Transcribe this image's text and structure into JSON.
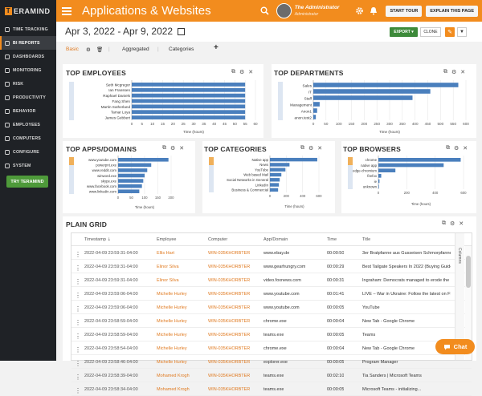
{
  "brand": {
    "logo_text": "ERAMIND",
    "logo_mark": "T"
  },
  "sidebar": {
    "items": [
      {
        "label": "TIME TRACKING",
        "icon": "clock-icon"
      },
      {
        "label": "BI REPORTS",
        "icon": "chart-icon",
        "active": true
      },
      {
        "label": "DASHBOARDS",
        "icon": "dashboard-icon"
      },
      {
        "label": "MONITORING",
        "icon": "monitor-icon"
      },
      {
        "label": "RISK",
        "icon": "warning-icon"
      },
      {
        "label": "PRODUCTIVITY",
        "icon": "productivity-icon"
      },
      {
        "label": "BEHAVIOR",
        "icon": "behavior-icon"
      },
      {
        "label": "EMPLOYEES",
        "icon": "users-icon"
      },
      {
        "label": "COMPUTERS",
        "icon": "computer-icon"
      },
      {
        "label": "CONFIGURE",
        "icon": "gear-icon"
      },
      {
        "label": "SYSTEM",
        "icon": "system-icon"
      }
    ],
    "try_label": "TRY TERAMIND"
  },
  "topbar": {
    "title": "Applications & Websites",
    "user_name": "The Administrator",
    "user_role": "Administrator",
    "start_tour": "START TOUR",
    "explain": "EXPLAIN THIS PAGE",
    "accent": "#f28c1e"
  },
  "header": {
    "date_range": "Apr 3, 2022 - Apr 9, 2022",
    "export": "EXPORT ▾",
    "clone": "CLONE"
  },
  "tabs": {
    "basic": "Basic",
    "aggregated": "Aggregated",
    "categories": "Categories",
    "add": "+"
  },
  "panels": {
    "employees": {
      "title": "TOP EMPLOYEES",
      "xlabel": "Time (hours)"
    },
    "departments": {
      "title": "TOP DEPARTMENTS",
      "xlabel": "Time (hours)"
    },
    "apps": {
      "title": "TOP APPS/DOMAINS",
      "xlabel": "Time (hours)"
    },
    "categories": {
      "title": "TOP CATEGORIES",
      "xlabel": "Time (hours)"
    },
    "browsers": {
      "title": "TOP BROWSERS",
      "xlabel": "Time (hours)"
    }
  },
  "chart_data": [
    {
      "type": "bar",
      "orientation": "horizontal",
      "title": "TOP EMPLOYEES",
      "xlabel": "Time (hours)",
      "xlim": [
        0,
        60
      ],
      "xticks": [
        0,
        5,
        10,
        15,
        20,
        25,
        30,
        35,
        40,
        45,
        50,
        55,
        60
      ],
      "categories": [
        "Seth Mcgregor",
        "Ian Franssen",
        "Raphael Daniels",
        "Fang Shen",
        "Martin Sutherland",
        "Tamar Loya",
        "James Gebbert"
      ],
      "values": [
        55,
        55,
        55,
        55,
        55,
        55,
        55
      ]
    },
    {
      "type": "bar",
      "orientation": "horizontal",
      "title": "TOP DEPARTMENTS",
      "xlabel": "Time (hours)",
      "xlim": [
        0,
        600
      ],
      "xticks": [
        0,
        50,
        100,
        150,
        200,
        250,
        300,
        350,
        400,
        450,
        500,
        550,
        600
      ],
      "categories": [
        "Sales",
        "IT",
        "Staff",
        "Management",
        "Anon1",
        "anon.test2"
      ],
      "values": [
        570,
        460,
        390,
        25,
        15,
        10
      ]
    },
    {
      "type": "bar",
      "orientation": "horizontal",
      "title": "TOP APPS/DOMAINS",
      "xlabel": "Time (hours)",
      "xlim": [
        0,
        200
      ],
      "xticks": [
        0,
        50,
        100,
        150,
        200
      ],
      "categories": [
        "www.youtube.com",
        "powerpnt.exe",
        "www.reddit.com",
        "winword.exe",
        "skype.exe",
        "www.facebook.com",
        "www.linkedin.com"
      ],
      "values": [
        190,
        125,
        110,
        100,
        95,
        90,
        80
      ]
    },
    {
      "type": "bar",
      "orientation": "horizontal",
      "title": "TOP CATEGORIES",
      "xlabel": "Time (hours)",
      "xlim": [
        0,
        600
      ],
      "xticks": [
        0,
        200,
        400,
        600
      ],
      "categories": [
        "Native app",
        "News",
        "YouTube",
        "Web based Mail",
        "Social Networks in General",
        "LinkedIn",
        "Business & Commercial"
      ],
      "values": [
        580,
        240,
        190,
        140,
        120,
        110,
        100
      ]
    },
    {
      "type": "bar",
      "orientation": "horizontal",
      "title": "TOP BROWSERS",
      "xlabel": "Time (hours)",
      "xlim": [
        0,
        600
      ],
      "xticks": [
        0,
        200,
        400,
        600
      ],
      "categories": [
        "chrome",
        "native app",
        "edge-chromium",
        "firefox",
        "ie",
        "unknown"
      ],
      "values": [
        580,
        460,
        120,
        20,
        8,
        4
      ]
    }
  ],
  "grid": {
    "title": "PLAIN GRID",
    "columns": [
      "Timestamp",
      "Employee",
      "Computer",
      "App/Domain",
      "Time",
      "Title"
    ],
    "side_label": "Columns",
    "rows": [
      [
        "2022-04-09 23:59:31-04:00",
        "Ellis Hart",
        "WIN-035KHORBTER",
        "www.ebay.de",
        "00:00:50",
        "3er Bratpfanne aus Gusseisen Schmorpfanne"
      ],
      [
        "2022-04-09 23:59:31-04:00",
        "Elinor Silva",
        "WIN-035KHORBTER",
        "www.gearhungry.com",
        "00:00:29",
        "Best Tailgate Speakers In 2022 (Buying Guide"
      ],
      [
        "2022-04-09 23:59:31-04:00",
        "Elinor Silva",
        "WIN-035KHORBTER",
        "video.foxnews.com",
        "00:00:31",
        "Ingraham: Democrats managed to erode the"
      ],
      [
        "2022-04-09 23:59:06-04:00",
        "Michelle Hurley",
        "WIN-035KHORBTER",
        "www.youtube.com",
        "00:01:41",
        "LIVE – War in Ukraine: Follow the latest on FR"
      ],
      [
        "2022-04-09 23:59:06-04:00",
        "Michelle Hurley",
        "WIN-035KHORBTER",
        "www.youtube.com",
        "00:00:05",
        "YouTube"
      ],
      [
        "2022-04-09 23:58:59-04:00",
        "Michelle Hurley",
        "WIN-035KHORBTER",
        "chrome.exe",
        "00:00:04",
        "New Tab - Google Chrome"
      ],
      [
        "2022-04-09 23:58:59-04:00",
        "Michelle Hurley",
        "WIN-035KHORBTER",
        "teams.exe",
        "00:00:05",
        "Teams"
      ],
      [
        "2022-04-09 23:58:54-04:00",
        "Michelle Hurley",
        "WIN-035KHORBTER",
        "chrome.exe",
        "00:00:04",
        "New Tab - Google Chrome"
      ],
      [
        "2022-04-09 23:58:46-04:00",
        "Michelle Hurley",
        "WIN-035KHORBTER",
        "explorer.exe",
        "00:00:05",
        "Program Manager"
      ],
      [
        "2022-04-09 23:58:39-04:00",
        "Mohamed Krogh",
        "WIN-035KHORBTER",
        "teams.exe",
        "00:02:10",
        "Tia Sanders | Microsoft Teams"
      ],
      [
        "2022-04-09 23:58:34-04:00",
        "Mohamed Krogh",
        "WIN-035KHORBTER",
        "teams.exe",
        "00:00:05",
        "Microsoft Teams - initializing..."
      ]
    ]
  },
  "chat": {
    "label": "Chat"
  }
}
